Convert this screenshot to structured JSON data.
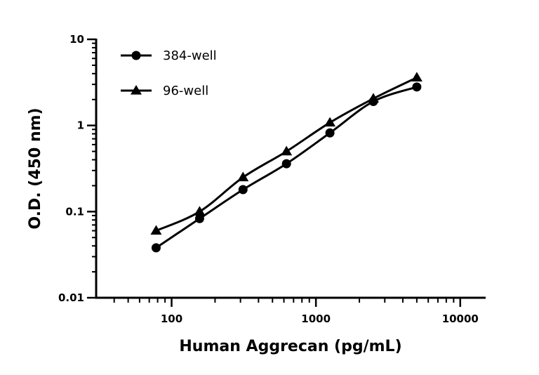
{
  "chart_data": {
    "type": "line",
    "xlabel": "Human Aggrecan (pg/mL)",
    "ylabel": "O.D. (450 nm)",
    "x_scale": "log",
    "y_scale": "log",
    "xlim": [
      30,
      15000
    ],
    "ylim": [
      0.01,
      10
    ],
    "x_ticks": [
      100,
      1000,
      10000
    ],
    "x_tick_labels": [
      "100",
      "1000",
      "10000"
    ],
    "y_ticks": [
      0.01,
      0.1,
      1,
      10
    ],
    "y_tick_labels": [
      "0.01",
      "0.1",
      "1",
      "10"
    ],
    "grid": false,
    "legend_position": "top-left",
    "series": [
      {
        "name": "384-well",
        "marker": "circle",
        "color": "#000000",
        "x": [
          78.1,
          156.3,
          312.5,
          625,
          1250,
          2500,
          5000
        ],
        "y": [
          0.038,
          0.083,
          0.18,
          0.36,
          0.82,
          1.9,
          2.8
        ]
      },
      {
        "name": "96-well",
        "marker": "triangle",
        "color": "#000000",
        "x": [
          78.1,
          156.3,
          312.5,
          625,
          1250,
          2500,
          5000
        ],
        "y": [
          0.06,
          0.1,
          0.25,
          0.5,
          1.08,
          2.05,
          3.6
        ]
      }
    ]
  }
}
